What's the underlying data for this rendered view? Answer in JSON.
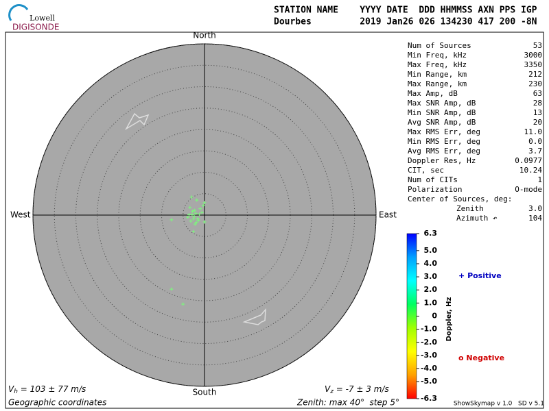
{
  "logo": {
    "top": "Lowell",
    "bottom": "DIGISONDE"
  },
  "header": {
    "lines": [
      "STATION NAME    YYYY DATE  DDD HHMMSS AXN PPS IGP",
      "Dourbes         2019 Jan26 026 134230 417 200 -8N"
    ]
  },
  "chart_data": {
    "type": "scatter",
    "directions": {
      "north": "North",
      "south": "South",
      "east": "East",
      "west": "West"
    },
    "xlim": [
      -40,
      40
    ],
    "ylim": [
      -40,
      40
    ],
    "rticks": [
      5,
      10,
      15,
      20,
      25,
      30,
      35,
      40
    ],
    "color": "#80f080",
    "x": [
      0,
      -1.8,
      -3.0,
      -7.7,
      0,
      -2.6,
      -7.7,
      -5.0,
      -2.4,
      -2.0,
      -2.8,
      -1.6,
      -3.2,
      -1.2,
      -2.2,
      -3.6,
      -1.0,
      -2.6,
      -1.9,
      -3.4,
      -0.6,
      -2.9,
      -1.4,
      -2.3,
      -3.9,
      -0.3
    ],
    "y": [
      2.9,
      3.5,
      4.2,
      -1.1,
      -1.6,
      -3.8,
      -17.3,
      -20.8,
      -0.3,
      0.4,
      0.9,
      -0.8,
      -1.4,
      0.2,
      -2.1,
      0.1,
      1.5,
      -0.9,
      -1.7,
      1.8,
      0.6,
      0.1,
      -1.2,
      1.1,
      -0.5,
      2.2
    ],
    "footer": {
      "vh": [
        "V",
        "h",
        " = 103 ± 77 m/s"
      ],
      "vz": [
        "V",
        "z",
        " = -7 ± 3 m/s"
      ],
      "coords": "Geographic coordinates",
      "zenith": "Zenith: max 40°  step 5°"
    }
  },
  "stats": [
    [
      "Num of Sources",
      "53"
    ],
    [
      "Min Freq, kHz",
      "3000"
    ],
    [
      "Max Freq, kHz",
      "3350"
    ],
    [
      "Min Range, km",
      "212"
    ],
    [
      "Max Range, km",
      "230"
    ],
    [
      "Max Amp, dB",
      "63"
    ],
    [
      "Max SNR Amp, dB",
      "28"
    ],
    [
      "Min SNR Amp, dB",
      "13"
    ],
    [
      "Avg SNR Amp, dB",
      "20"
    ],
    [
      "Max RMS Err, deg",
      "11.0"
    ],
    [
      "Min RMS Err, deg",
      "0.0"
    ],
    [
      "Avg RMS Err, deg",
      "3.7"
    ],
    [
      "Doppler Res, Hz",
      "0.0977"
    ],
    [
      "CIT, sec",
      "10.24"
    ],
    [
      "Num of CITs",
      "1"
    ],
    [
      "Polarization",
      "O-mode"
    ]
  ],
  "center": {
    "title": "Center of Sources, deg:",
    "rows": [
      [
        "Zenith",
        "3.0"
      ],
      [
        "Azimuth ↶",
        "104"
      ]
    ]
  },
  "colorbar": {
    "title": "Doppler, Hz",
    "lim": [
      -6.3,
      6.3
    ],
    "ticks": [
      6.3,
      {
        "value": 5,
        "label": "5.0"
      },
      {
        "value": 4,
        "label": "4.0"
      },
      {
        "value": 3,
        "label": "3.0"
      },
      {
        "value": 2,
        "label": "2.0"
      },
      {
        "value": 1,
        "label": "1.0"
      },
      0,
      {
        "value": -1,
        "label": "-1.0"
      },
      {
        "value": -2,
        "label": "-2.0"
      },
      {
        "value": -3,
        "label": "-3.0"
      },
      {
        "value": -4,
        "label": "-4.0"
      },
      {
        "value": -5,
        "label": "-5.0"
      },
      -6.3
    ],
    "colors": [
      "#0000ff",
      "#00a0ff",
      "#00ffff",
      "#00ff60",
      "#a0ff00",
      "#ffff00",
      "#ffa000",
      "#ff0000"
    ]
  },
  "legend": {
    "positive": [
      "+",
      "Positive"
    ],
    "negative": [
      "o",
      "Negative"
    ]
  },
  "version": "ShowSkymap v 1.0   SD v 5.1"
}
